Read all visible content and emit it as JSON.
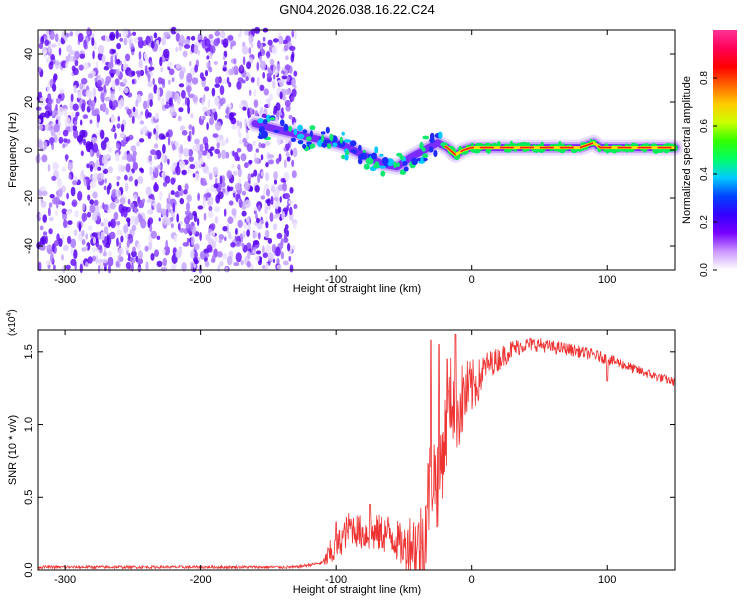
{
  "title": "GN04.2026.038.16.22.C24",
  "chart_data": [
    {
      "type": "heatmap",
      "name": "spectrogram",
      "xlabel": "Height of straight line (km)",
      "ylabel": "Frequency (Hz)",
      "xlim": [
        -320,
        150
      ],
      "ylim": [
        -50,
        50
      ],
      "xticks": [
        -300,
        -200,
        -100,
        0,
        100
      ],
      "yticks": [
        -40,
        -20,
        0,
        20,
        40
      ],
      "colorbar": {
        "label": "Normalized spectral amplitude",
        "range": [
          0.0,
          1.0
        ],
        "ticks": [
          0.0,
          0.2,
          0.4,
          0.6,
          0.8
        ],
        "colors": [
          "#ffffff",
          "#cc99ff",
          "#7700ff",
          "#3300ff",
          "#0044ff",
          "#00ccff",
          "#00ff66",
          "#33ff00",
          "#ccff00",
          "#ffcc00",
          "#ff6600",
          "#ff0000",
          "#ff0055",
          "#ff3399"
        ]
      },
      "ridge": {
        "x": [
          -160,
          -140,
          -125,
          -110,
          -95,
          -80,
          -65,
          -55,
          -45,
          -35,
          -25,
          -18,
          -12,
          -6,
          0,
          20,
          40,
          60,
          80,
          90,
          95,
          110,
          130,
          150
        ],
        "y": [
          11,
          8,
          6,
          4,
          2,
          -2,
          -6,
          -7,
          -3,
          0,
          3,
          1,
          -2,
          0,
          1,
          1,
          1,
          1,
          1,
          3,
          1,
          1,
          1,
          1
        ]
      },
      "noise_region_x": [
        -320,
        -130
      ]
    },
    {
      "type": "line",
      "name": "snr",
      "xlabel": "Height of straight line (km)",
      "ylabel": "SNR (10 * v/v)",
      "y_multiplier": "(x10",
      "y_multiplier_exp": "4",
      "y_multiplier_close": ")",
      "xlim": [
        -320,
        150
      ],
      "ylim": [
        0,
        1.65
      ],
      "xticks": [
        -300,
        -200,
        -100,
        0,
        100
      ],
      "yticks": [
        0.0,
        0.5,
        1.0,
        1.5
      ],
      "color": "#ee3333",
      "envelope": {
        "x": [
          -320,
          -130,
          -110,
          -100,
          -90,
          -80,
          -70,
          -60,
          -50,
          -45,
          -40,
          -35,
          -30,
          -25,
          -20,
          -15,
          -10,
          -5,
          0,
          5,
          10,
          20,
          30,
          40,
          50,
          60,
          70,
          80,
          90,
          100,
          110,
          120,
          130,
          140,
          150
        ],
        "y": [
          0.02,
          0.02,
          0.05,
          0.15,
          0.3,
          0.25,
          0.25,
          0.25,
          0.15,
          0.2,
          0.15,
          0.2,
          0.7,
          0.6,
          0.9,
          1.2,
          1.1,
          1.2,
          1.25,
          1.3,
          1.4,
          1.45,
          1.52,
          1.55,
          1.55,
          1.53,
          1.52,
          1.5,
          1.48,
          1.45,
          1.42,
          1.38,
          1.35,
          1.32,
          1.29
        ]
      },
      "noise_amplitude": {
        "x": [
          -320,
          -110,
          -105,
          -50,
          -35,
          -10,
          10,
          40,
          150
        ],
        "y": [
          0.01,
          0.01,
          0.1,
          0.15,
          0.35,
          0.3,
          0.1,
          0.05,
          0.03
        ]
      },
      "spikes": [
        {
          "x": -100,
          "y": 0.33
        },
        {
          "x": -75,
          "y": 0.45
        },
        {
          "x": -30,
          "y": 1.58
        },
        {
          "x": -24,
          "y": 1.55
        },
        {
          "x": -18,
          "y": 1.45
        },
        {
          "x": -12,
          "y": 1.62
        },
        {
          "x": 100,
          "y": 1.3
        }
      ]
    }
  ]
}
